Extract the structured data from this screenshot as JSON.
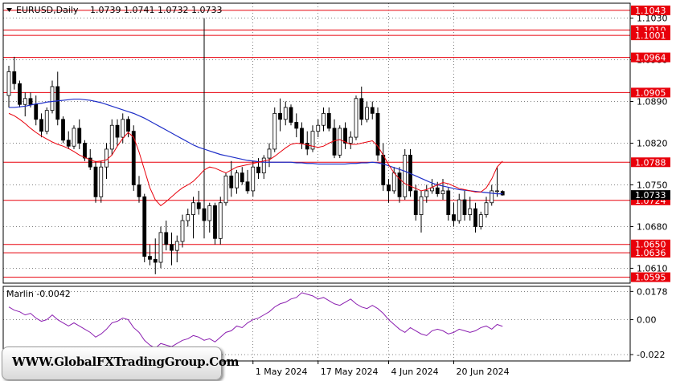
{
  "header": {
    "symbol": "EURUSD,Daily",
    "ohlc": "1.0739 1.0741 1.0732 1.0733",
    "indicator_label": "Marlin -0.0042"
  },
  "watermark": {
    "text": "WWW.GlobalFXTradingGroup.Com"
  },
  "colors": {
    "level_line": "#e8000b",
    "ma_fast": "#e8000b",
    "ma_slow": "#1f2fc8",
    "oscillator": "#8b1fb0",
    "grid": "#000000",
    "bull_body": "#ffffff",
    "bear_body": "#000000",
    "current_price_badge": "#000000"
  },
  "chart_data": {
    "type": "candlestick",
    "price_axis": {
      "min": 1.0585,
      "max": 1.1055,
      "ticks": [
        "1.1030",
        "1.0960",
        "1.0890",
        "1.0820",
        "1.0750",
        "1.0680",
        "1.0610"
      ]
    },
    "current_price": "1.0733",
    "levels": [
      {
        "label": "1.1043",
        "value": 1.1043
      },
      {
        "label": "1.1010",
        "value": 1.101
      },
      {
        "label": "1.1001",
        "value": 1.1001
      },
      {
        "label": "1.0964",
        "value": 1.0964
      },
      {
        "label": "1.0905",
        "value": 1.0905
      },
      {
        "label": "1.0788",
        "value": 1.0788
      },
      {
        "label": "1.0724",
        "value": 1.0724
      },
      {
        "label": "1.0650",
        "value": 1.065
      },
      {
        "label": "1.0636",
        "value": 1.0636
      },
      {
        "label": "1.0595",
        "value": 1.0595
      }
    ],
    "x_labels": [
      {
        "label": "1 May 2024",
        "index": 45
      },
      {
        "label": "17 May 2024",
        "index": 57
      },
      {
        "label": "4 Jun 2024",
        "index": 70
      },
      {
        "label": "20 Jun 2024",
        "index": 82
      }
    ],
    "candles": [
      [
        1.09,
        1.095,
        1.088,
        1.094
      ],
      [
        1.094,
        1.0965,
        1.091,
        1.092
      ],
      [
        1.092,
        1.0925,
        1.088,
        1.0885
      ],
      [
        1.0885,
        1.0905,
        1.0865,
        1.0895
      ],
      [
        1.0895,
        1.0905,
        1.088,
        1.0885
      ],
      [
        1.0885,
        1.09,
        1.085,
        1.086
      ],
      [
        1.086,
        1.087,
        1.083,
        1.084
      ],
      [
        1.084,
        1.088,
        1.0835,
        1.0875
      ],
      [
        1.0875,
        1.0925,
        1.087,
        1.0915
      ],
      [
        1.0915,
        1.094,
        1.085,
        1.086
      ],
      [
        1.086,
        1.0865,
        1.082,
        1.0825
      ],
      [
        1.0825,
        1.084,
        1.081,
        1.0815
      ],
      [
        1.0815,
        1.085,
        1.081,
        1.0845
      ],
      [
        1.0845,
        1.086,
        1.081,
        1.082
      ],
      [
        1.082,
        1.0825,
        1.079,
        1.0795
      ],
      [
        1.0795,
        1.081,
        1.0775,
        1.078
      ],
      [
        1.078,
        1.079,
        1.072,
        1.073
      ],
      [
        1.073,
        1.079,
        1.072,
        1.078
      ],
      [
        1.078,
        1.082,
        1.076,
        1.081
      ],
      [
        1.081,
        1.086,
        1.08,
        1.085
      ],
      [
        1.085,
        1.086,
        1.0815,
        1.083
      ],
      [
        1.083,
        1.087,
        1.082,
        1.086
      ],
      [
        1.086,
        1.0865,
        1.083,
        1.084
      ],
      [
        1.084,
        1.085,
        1.074,
        1.075
      ],
      [
        1.075,
        1.0765,
        1.072,
        1.073
      ],
      [
        1.073,
        1.0735,
        1.062,
        1.063
      ],
      [
        1.063,
        1.065,
        1.0615,
        1.0625
      ],
      [
        1.0625,
        1.066,
        1.06,
        1.062
      ],
      [
        1.062,
        1.068,
        1.061,
        1.067
      ],
      [
        1.067,
        1.069,
        1.064,
        1.065
      ],
      [
        1.065,
        1.067,
        1.0615,
        1.064
      ],
      [
        1.064,
        1.0665,
        1.062,
        1.0655
      ],
      [
        1.0655,
        1.07,
        1.0645,
        1.069
      ],
      [
        1.069,
        1.071,
        1.068,
        1.07
      ],
      [
        1.07,
        1.073,
        1.066,
        1.072
      ],
      [
        1.072,
        1.074,
        1.07,
        1.071
      ],
      [
        1.071,
        1.103,
        1.066,
        1.069
      ],
      [
        1.069,
        1.072,
        1.067,
        1.0715
      ],
      [
        1.0715,
        1.072,
        1.065,
        1.066
      ],
      [
        1.066,
        1.073,
        1.065,
        1.072
      ],
      [
        1.072,
        1.077,
        1.0715,
        1.0765
      ],
      [
        1.0765,
        1.079,
        1.073,
        1.0745
      ],
      [
        1.0745,
        1.0775,
        1.0735,
        1.077
      ],
      [
        1.077,
        1.078,
        1.075,
        1.0755
      ],
      [
        1.0755,
        1.0775,
        1.0735,
        1.074
      ],
      [
        1.074,
        1.079,
        1.073,
        1.078
      ],
      [
        1.078,
        1.0795,
        1.076,
        1.077
      ],
      [
        1.077,
        1.08,
        1.076,
        1.0795
      ],
      [
        1.0795,
        1.082,
        1.078,
        1.081
      ],
      [
        1.081,
        1.088,
        1.0805,
        1.087
      ],
      [
        1.087,
        1.0895,
        1.084,
        1.086
      ],
      [
        1.086,
        1.089,
        1.085,
        1.088
      ],
      [
        1.088,
        1.0885,
        1.085,
        1.0855
      ],
      [
        1.0855,
        1.087,
        1.083,
        1.0845
      ],
      [
        1.0845,
        1.0855,
        1.081,
        1.082
      ],
      [
        1.082,
        1.084,
        1.08,
        1.081
      ],
      [
        1.081,
        1.085,
        1.0805,
        1.084
      ],
      [
        1.084,
        1.086,
        1.083,
        1.085
      ],
      [
        1.085,
        1.088,
        1.084,
        1.087
      ],
      [
        1.087,
        1.088,
        1.084,
        1.0845
      ],
      [
        1.0845,
        1.086,
        1.0795,
        1.08
      ],
      [
        1.08,
        1.085,
        1.0795,
        1.0845
      ],
      [
        1.0845,
        1.0855,
        1.081,
        1.082
      ],
      [
        1.082,
        1.084,
        1.081,
        1.083
      ],
      [
        1.083,
        1.09,
        1.0825,
        1.0895
      ],
      [
        1.0895,
        1.0915,
        1.085,
        1.086
      ],
      [
        1.086,
        1.089,
        1.0855,
        1.088
      ],
      [
        1.088,
        1.089,
        1.086,
        1.087
      ],
      [
        1.087,
        1.088,
        1.079,
        1.08
      ],
      [
        1.08,
        1.082,
        1.074,
        1.075
      ],
      [
        1.075,
        1.076,
        1.072,
        1.074
      ],
      [
        1.074,
        1.078,
        1.0735,
        1.077
      ],
      [
        1.077,
        1.078,
        1.072,
        1.073
      ],
      [
        1.073,
        1.081,
        1.0725,
        1.08
      ],
      [
        1.08,
        1.081,
        1.073,
        1.074
      ],
      [
        1.074,
        1.075,
        1.069,
        1.07
      ],
      [
        1.07,
        1.074,
        1.067,
        1.073
      ],
      [
        1.073,
        1.075,
        1.072,
        1.074
      ],
      [
        1.074,
        1.076,
        1.0735,
        1.0745
      ],
      [
        1.0745,
        1.0755,
        1.073,
        1.0735
      ],
      [
        1.0735,
        1.076,
        1.0725,
        1.074
      ],
      [
        1.074,
        1.0745,
        1.069,
        1.07
      ],
      [
        1.07,
        1.072,
        1.068,
        1.069
      ],
      [
        1.069,
        1.0735,
        1.0685,
        1.0725
      ],
      [
        1.0725,
        1.074,
        1.069,
        1.07
      ],
      [
        1.07,
        1.073,
        1.069,
        1.071
      ],
      [
        1.071,
        1.072,
        1.067,
        1.068
      ],
      [
        1.068,
        1.0705,
        1.0675,
        1.07
      ],
      [
        1.07,
        1.073,
        1.0695,
        1.072
      ],
      [
        1.072,
        1.075,
        1.0715,
        1.074
      ],
      [
        1.074,
        1.078,
        1.073,
        1.074
      ],
      [
        1.0739,
        1.0741,
        1.0732,
        1.0733
      ]
    ],
    "ma_fast": [
      1.087,
      1.0866,
      1.086,
      1.0853,
      1.0845,
      1.0838,
      1.0832,
      1.0827,
      1.0822,
      1.0818,
      1.0815,
      1.0811,
      1.0806,
      1.08,
      1.0796,
      1.0792,
      1.0789,
      1.079,
      1.0792,
      1.08,
      1.0815,
      1.0828,
      1.0838,
      1.083,
      1.0805,
      1.0775,
      1.0745,
      1.0725,
      1.0715,
      1.0722,
      1.073,
      1.0738,
      1.0745,
      1.075,
      1.0756,
      1.0765,
      1.0775,
      1.078,
      1.0778,
      1.0774,
      1.077,
      1.0775,
      1.078,
      1.0782,
      1.0784,
      1.0786,
      1.0788,
      1.079,
      1.0792,
      1.0798,
      1.0805,
      1.0812,
      1.0818,
      1.082,
      1.0819,
      1.0817,
      1.0815,
      1.0813,
      1.0815,
      1.082,
      1.0824,
      1.0826,
      1.0822,
      1.0818,
      1.0818,
      1.082,
      1.0822,
      1.0824,
      1.0815,
      1.08,
      1.0784,
      1.077,
      1.076,
      1.0752,
      1.0748,
      1.0744,
      1.074,
      1.0742,
      1.0746,
      1.075,
      1.0754,
      1.0752,
      1.0748,
      1.0744,
      1.0742,
      1.074,
      1.0738,
      1.0738,
      1.0745,
      1.076,
      1.078,
      1.079
    ],
    "ma_slow": [
      1.088,
      1.088,
      1.0881,
      1.0882,
      1.0884,
      1.0886,
      1.0887,
      1.0889,
      1.089,
      1.0891,
      1.0892,
      1.0893,
      1.0894,
      1.0894,
      1.0893,
      1.0892,
      1.089,
      1.0888,
      1.0885,
      1.0882,
      1.0879,
      1.0876,
      1.0873,
      1.087,
      1.0866,
      1.0862,
      1.0857,
      1.0852,
      1.0847,
      1.0842,
      1.0837,
      1.0832,
      1.0827,
      1.0822,
      1.0817,
      1.0813,
      1.081,
      1.0807,
      1.0804,
      1.0801,
      1.0799,
      1.0797,
      1.0795,
      1.0793,
      1.0791,
      1.079,
      1.0789,
      1.0788,
      1.0788,
      1.0788,
      1.0788,
      1.0788,
      1.0788,
      1.0787,
      1.0787,
      1.0786,
      1.0786,
      1.0785,
      1.0785,
      1.0785,
      1.0785,
      1.0785,
      1.0785,
      1.0786,
      1.0786,
      1.0787,
      1.0787,
      1.0788,
      1.0787,
      1.0785,
      1.0782,
      1.0779,
      1.0776,
      1.0773,
      1.0769,
      1.0765,
      1.0761,
      1.0757,
      1.0753,
      1.075,
      1.0748,
      1.0746,
      1.0744,
      1.0742,
      1.0741,
      1.074,
      1.0739,
      1.0738,
      1.0737,
      1.0736,
      1.0735,
      1.0735
    ],
    "oscillator": {
      "label": "Marlin -0.0042",
      "ticks": [
        "0.0178",
        "0.00",
        "-0.022"
      ],
      "min": -0.026,
      "max": 0.021,
      "values": [
        0.008,
        0.006,
        0.005,
        0.003,
        0.004,
        0.001,
        -0.001,
        0.0,
        0.003,
        0.0,
        -0.002,
        -0.004,
        -0.002,
        -0.004,
        -0.006,
        -0.008,
        -0.011,
        -0.009,
        -0.006,
        -0.002,
        -0.001,
        0.001,
        0.0,
        -0.005,
        -0.008,
        -0.013,
        -0.016,
        -0.018,
        -0.015,
        -0.016,
        -0.017,
        -0.015,
        -0.013,
        -0.012,
        -0.01,
        -0.011,
        -0.013,
        -0.012,
        -0.014,
        -0.011,
        -0.008,
        -0.007,
        -0.004,
        -0.005,
        -0.002,
        0.0,
        0.001,
        0.003,
        0.005,
        0.008,
        0.01,
        0.011,
        0.013,
        0.014,
        0.017,
        0.016,
        0.015,
        0.013,
        0.014,
        0.012,
        0.01,
        0.009,
        0.011,
        0.013,
        0.01,
        0.008,
        0.007,
        0.009,
        0.007,
        0.004,
        0.0,
        -0.003,
        -0.006,
        -0.008,
        -0.005,
        -0.007,
        -0.009,
        -0.01,
        -0.007,
        -0.006,
        -0.007,
        -0.009,
        -0.008,
        -0.006,
        -0.007,
        -0.008,
        -0.007,
        -0.005,
        -0.004,
        -0.006,
        -0.003,
        -0.0042
      ]
    }
  }
}
